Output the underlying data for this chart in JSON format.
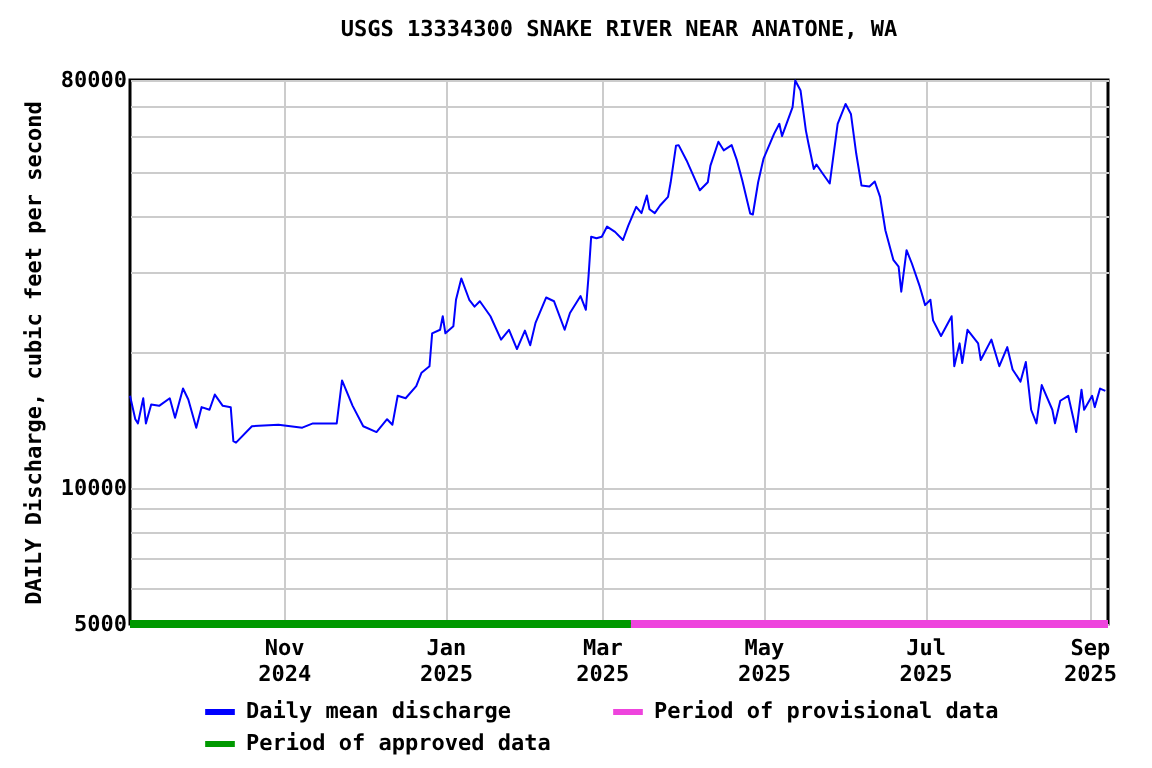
{
  "chart_data": {
    "type": "line",
    "title": "USGS 13334300 SNAKE RIVER NEAR ANATONE, WA",
    "ylabel": "DAILY Discharge, cubic feet per second",
    "x": [
      "2024-09-04",
      "2024-09-06",
      "2024-09-07",
      "2024-09-09",
      "2024-09-10",
      "2024-09-12",
      "2024-09-15",
      "2024-09-19",
      "2024-09-21",
      "2024-09-24",
      "2024-09-26",
      "2024-09-29",
      "2024-10-01",
      "2024-10-04",
      "2024-10-06",
      "2024-10-09",
      "2024-10-12",
      "2024-10-13",
      "2024-10-14",
      "2024-10-20",
      "2024-10-30",
      "2024-11-08",
      "2024-11-12",
      "2024-11-17",
      "2024-11-21",
      "2024-11-23",
      "2024-11-27",
      "2024-12-01",
      "2024-12-06",
      "2024-12-10",
      "2024-12-12",
      "2024-12-14",
      "2024-12-17",
      "2024-12-21",
      "2024-12-23",
      "2024-12-26",
      "2024-12-27",
      "2024-12-30",
      "2024-12-31",
      "2025-01-01",
      "2025-01-04",
      "2025-01-05",
      "2025-01-07",
      "2025-01-10",
      "2025-01-12",
      "2025-01-14",
      "2025-01-18",
      "2025-01-22",
      "2025-01-25",
      "2025-01-28",
      "2025-01-31",
      "2025-02-02",
      "2025-02-04",
      "2025-02-08",
      "2025-02-11",
      "2025-02-15",
      "2025-02-17",
      "2025-02-21",
      "2025-02-23",
      "2025-02-24",
      "2025-02-25",
      "2025-02-27",
      "2025-03-01",
      "2025-03-03",
      "2025-03-06",
      "2025-03-09",
      "2025-03-11",
      "2025-03-14",
      "2025-03-16",
      "2025-03-18",
      "2025-03-19",
      "2025-03-21",
      "2025-03-23",
      "2025-03-26",
      "2025-03-27",
      "2025-03-29",
      "2025-03-30",
      "2025-04-02",
      "2025-04-07",
      "2025-04-10",
      "2025-04-11",
      "2025-04-14",
      "2025-04-16",
      "2025-04-19",
      "2025-04-21",
      "2025-04-23",
      "2025-04-26",
      "2025-04-27",
      "2025-04-29",
      "2025-05-01",
      "2025-05-05",
      "2025-05-07",
      "2025-05-08",
      "2025-05-12",
      "2025-05-13",
      "2025-05-15",
      "2025-05-17",
      "2025-05-18",
      "2025-05-20",
      "2025-05-21",
      "2025-05-23",
      "2025-05-26",
      "2025-05-29",
      "2025-06-01",
      "2025-06-03",
      "2025-06-05",
      "2025-06-07",
      "2025-06-10",
      "2025-06-12",
      "2025-06-14",
      "2025-06-16",
      "2025-06-19",
      "2025-06-21",
      "2025-06-22",
      "2025-06-24",
      "2025-06-26",
      "2025-06-29",
      "2025-07-01",
      "2025-07-03",
      "2025-07-04",
      "2025-07-07",
      "2025-07-11",
      "2025-07-12",
      "2025-07-14",
      "2025-07-15",
      "2025-07-17",
      "2025-07-21",
      "2025-07-22",
      "2025-07-26",
      "2025-07-29",
      "2025-08-01",
      "2025-08-03",
      "2025-08-06",
      "2025-08-08",
      "2025-08-10",
      "2025-08-12",
      "2025-08-14",
      "2025-08-18",
      "2025-08-19",
      "2025-08-21",
      "2025-08-24",
      "2025-08-26",
      "2025-08-27",
      "2025-08-29",
      "2025-08-30",
      "2025-09-02",
      "2025-09-03",
      "2025-09-05",
      "2025-09-07"
    ],
    "series": [
      {
        "name": "Daily mean discharge",
        "color": "#0000ff",
        "values": [
          16000,
          14200,
          13900,
          15800,
          13900,
          15300,
          15200,
          15800,
          14300,
          16600,
          15700,
          13600,
          15100,
          14900,
          16100,
          15200,
          15100,
          12700,
          12600,
          13700,
          13800,
          13600,
          13900,
          13900,
          13900,
          17300,
          15200,
          13700,
          13300,
          14200,
          13800,
          16000,
          15800,
          16800,
          18000,
          18600,
          22000,
          22400,
          24000,
          22000,
          22800,
          26100,
          29100,
          26100,
          25200,
          25900,
          24000,
          21300,
          22400,
          20300,
          22300,
          20700,
          23200,
          26400,
          25900,
          22400,
          24400,
          26600,
          24800,
          29400,
          36000,
          35700,
          36000,
          37900,
          36900,
          35400,
          38100,
          41900,
          40600,
          44400,
          41400,
          40600,
          42200,
          44100,
          47500,
          57200,
          57400,
          53100,
          45600,
          47500,
          51700,
          58400,
          55900,
          57400,
          53100,
          48000,
          40500,
          40300,
          47500,
          53500,
          60800,
          64000,
          60100,
          69700,
          79800,
          75800,
          61900,
          57800,
          50800,
          52000,
          50000,
          47200,
          64000,
          70800,
          67300,
          55000,
          46700,
          46500,
          47700,
          44100,
          37200,
          32000,
          30900,
          27200,
          33600,
          31400,
          27900,
          25400,
          26100,
          23500,
          21700,
          24000,
          18600,
          20900,
          18900,
          22400,
          20900,
          19200,
          21300,
          18600,
          20500,
          18300,
          17200,
          19000,
          14900,
          13900,
          16900,
          14900,
          13900,
          15600,
          16000,
          14200,
          13300,
          16500,
          14900,
          16000,
          15100,
          16600,
          16400
        ]
      },
      {
        "name": "Period of provisional data",
        "color": "#ee44dd",
        "x": [
          "2025-03-12",
          "2025-09-08"
        ],
        "values": [
          5000,
          5000
        ]
      },
      {
        "name": "Period of approved data",
        "color": "#009900",
        "x": [
          "2024-09-04",
          "2025-03-12"
        ],
        "values": [
          5000,
          5000
        ]
      }
    ],
    "xlim": [
      "2024-09-04",
      "2025-09-08"
    ],
    "xticks": [
      {
        "value": "2024-11-01",
        "label": "Nov 2024"
      },
      {
        "value": "2025-01-01",
        "label": "Jan 2025"
      },
      {
        "value": "2025-03-01",
        "label": "Mar 2025"
      },
      {
        "value": "2025-05-01",
        "label": "May 2025"
      },
      {
        "value": "2025-07-01",
        "label": "Jul 2025"
      },
      {
        "value": "2025-09-01",
        "label": "Sep 2025"
      }
    ],
    "ylim": [
      5000,
      80000
    ],
    "yticks": [
      5000,
      {
        "value": 6000,
        "label": null
      },
      {
        "value": 7000,
        "label": null
      },
      {
        "value": 8000,
        "label": null
      },
      {
        "value": 9000,
        "label": null
      },
      10000,
      {
        "value": 20000,
        "label": null
      },
      {
        "value": 30000,
        "label": null
      },
      {
        "value": 40000,
        "label": null
      },
      {
        "value": 50000,
        "label": null
      },
      {
        "value": 60000,
        "label": null
      },
      {
        "value": 70000,
        "label": null
      },
      80000
    ],
    "log": "y",
    "grid": true,
    "legend": "bottom"
  }
}
